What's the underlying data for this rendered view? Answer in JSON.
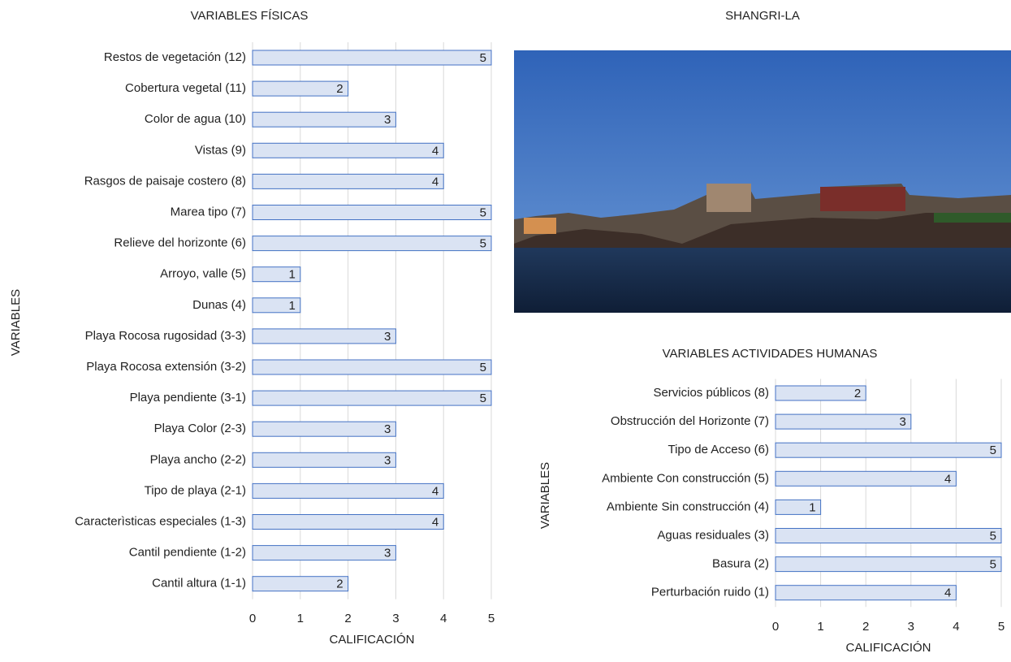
{
  "chart_data": [
    {
      "type": "barh",
      "title": "VARIABLES FÍSICAS",
      "xlabel": "CALIFICACIÓN",
      "ylabel": "VARIABLES",
      "categories": [
        "Restos de vegetación (12)",
        "Cobertura vegetal (11)",
        "Color de agua (10)",
        "Vistas (9)",
        "Rasgos de paisaje costero (8)",
        "Marea tipo (7)",
        "Relieve del horizonte (6)",
        "Arroyo, valle (5)",
        "Dunas (4)",
        "Playa Rocosa rugosidad (3-3)",
        "Playa Rocosa extensión (3-2)",
        "Playa pendiente (3-1)",
        "Playa Color (2-3)",
        "Playa ancho (2-2)",
        "Tipo de playa (2-1)",
        "Caracterìsticas especiales (1-3)",
        "Cantil pendiente (1-2)",
        "Cantil altura (1-1)"
      ],
      "values": [
        5,
        2,
        3,
        4,
        4,
        5,
        5,
        1,
        1,
        3,
        5,
        5,
        3,
        3,
        4,
        4,
        3,
        2
      ],
      "color": "#dae3f3",
      "edgecolor": "#4472c4",
      "xlim": [
        0,
        5
      ],
      "xticks": [
        0,
        1,
        2,
        3,
        4,
        5
      ],
      "grid": true
    },
    {
      "type": "barh",
      "title": "VARIABLES ACTIVIDADES HUMANAS",
      "xlabel": "CALIFICACIÓN",
      "ylabel": "VARIABLES",
      "categories": [
        "Servicios públicos (8)",
        "Obstrucción del Horizonte (7)",
        "Tipo de Acceso (6)",
        "Ambiente Con construcción (5)",
        "Ambiente Sin construcción (4)",
        "Aguas residuales (3)",
        "Basura (2)",
        "Perturbación ruido (1)"
      ],
      "values": [
        2,
        3,
        5,
        4,
        1,
        5,
        5,
        4
      ],
      "color": "#dae3f3",
      "edgecolor": "#4472c4",
      "xlim": [
        0,
        5
      ],
      "xticks": [
        0,
        1,
        2,
        3,
        4,
        5
      ],
      "grid": true
    }
  ],
  "photo": {
    "title": "SHANGRI-LA"
  }
}
